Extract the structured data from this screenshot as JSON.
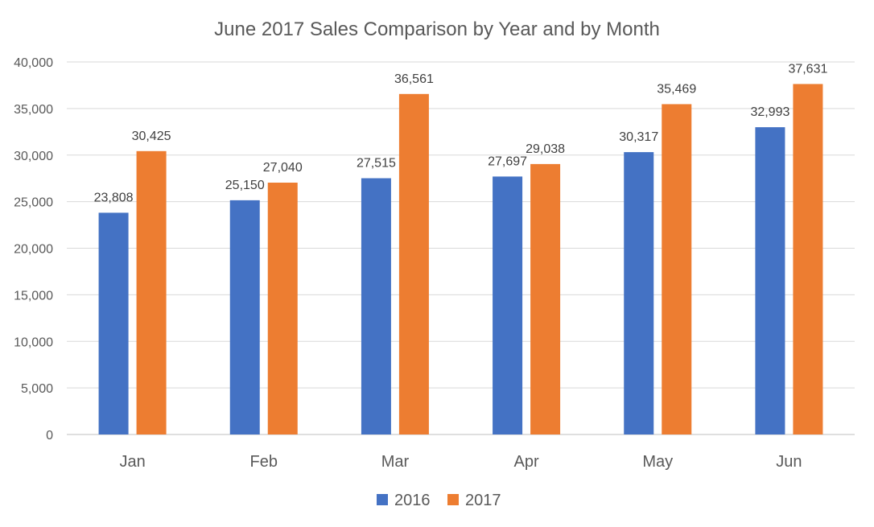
{
  "chart_data": {
    "type": "bar",
    "title": "June 2017 Sales Comparison by Year and by Month",
    "categories": [
      "Jan",
      "Feb",
      "Mar",
      "Apr",
      "May",
      "Jun"
    ],
    "series": [
      {
        "name": "2016",
        "color": "#4472c4",
        "values": [
          23808,
          25150,
          27515,
          27697,
          30317,
          32993
        ]
      },
      {
        "name": "2017",
        "color": "#ed7d31",
        "values": [
          30425,
          27040,
          36561,
          29038,
          35469,
          37631
        ]
      }
    ],
    "ylim": [
      0,
      40000
    ],
    "yticks": [
      0,
      5000,
      10000,
      15000,
      20000,
      25000,
      30000,
      35000,
      40000
    ],
    "ytick_labels": [
      "0",
      "5,000",
      "10,000",
      "15,000",
      "20,000",
      "25,000",
      "30,000",
      "35,000",
      "40,000"
    ],
    "data_labels": [
      [
        "23,808",
        "25,150",
        "27,515",
        "27,697",
        "30,317",
        "32,993"
      ],
      [
        "30,425",
        "27,040",
        "36,561",
        "29,038",
        "35,469",
        "37,631"
      ]
    ],
    "grid": true,
    "legend_position": "bottom"
  }
}
